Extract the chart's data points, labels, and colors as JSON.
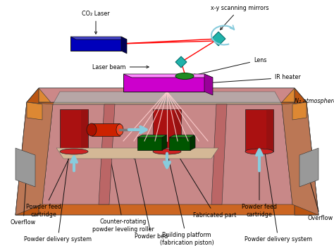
{
  "figure_size": [
    4.74,
    3.49
  ],
  "dpi": 100,
  "bg_color": "#ffffff",
  "labels": {
    "co2_laser": "CO₂ Laser",
    "xy_mirrors": "x-y scanning mirrors",
    "laser_beam": "Laser beam",
    "lens": "Lens",
    "ir_heater": "IR heater",
    "n2_atmosphere": "N₂ atmosphere",
    "overflow_left": "Overflow",
    "powder_feed_left": "Powder feed\ncartridge",
    "counter_rotating": "Counter-rotating\npowder leveling roller",
    "powder_bed": "Powder bed",
    "fabricated_part": "Fabricated part",
    "building_platform": "Building platform\n(fabrication piston)",
    "powder_feed_right": "Powder feed\ncartridge",
    "powder_delivery_left": "Powder delivery system",
    "powder_delivery_right": "Powder delivery system",
    "overflow_right": "Overflow"
  },
  "colors": {
    "laser_blue": "#0000CC",
    "mirror_teal": "#20B2AA",
    "lens_green": "#228B22",
    "ir_heater_magenta": "#CC00CC",
    "ir_heater_side": "#990099",
    "ir_heater_top": "#FF88FF",
    "machine_orange_front": "#CC6622",
    "machine_orange_light": "#DD8833",
    "machine_orange_side": "#BB5511",
    "machine_interior_back": "#CC8888",
    "machine_interior_floor": "#BB7777",
    "machine_glass": "#AABBBB",
    "machine_glass_alpha": 0.6,
    "left_side_wall": "#BB7755",
    "right_side_wall": "#BB7755",
    "divider": "#AA6666",
    "cylinder_body": "#8B0000",
    "cylinder_top": "#AA2222",
    "roller_red": "#CC2200",
    "fabricated_green": "#006400",
    "fabricated_green2": "#228B22",
    "arrow_blue": "#88CCDD",
    "laser_ray_red": "#FF3333",
    "beam_fan_white": "#FFBBBB",
    "overflow_gray": "#999999",
    "label_black": "#000000",
    "annot_line": "#000000"
  }
}
